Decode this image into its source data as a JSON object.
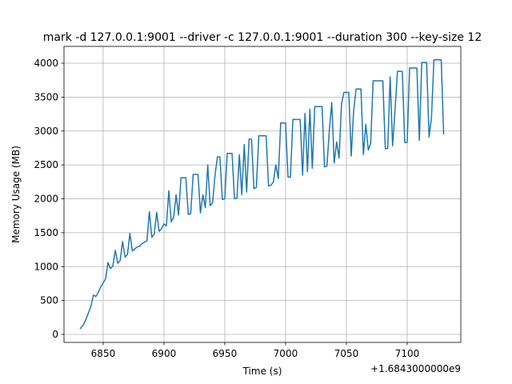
{
  "chart_data": {
    "type": "line",
    "title": "mark -d 127.0.0.1:9001 --driver -c 127.0.0.1:9001 --duration 300 --key-size 12",
    "x_label": "Time (s)",
    "y_label": "Memory Usage (MB)",
    "x_offset_label": "+1.6843000000e9",
    "x": [
      6831,
      6834,
      6836,
      6838,
      6840,
      6842,
      6844,
      6846,
      6848,
      6850,
      6852,
      6854,
      6856,
      6858,
      6860,
      6862,
      6864,
      6866,
      6868,
      6870,
      6872,
      6874,
      6876,
      6878,
      6880,
      6882,
      6884,
      6886,
      6888,
      6890,
      6892,
      6894,
      6896,
      6898,
      6900,
      6902,
      6904,
      6906,
      6908,
      6910,
      6912,
      6914,
      6918,
      6920,
      6922,
      6924,
      6928,
      6930,
      6932,
      6934,
      6936,
      6938,
      6940,
      6942,
      6944,
      6946,
      6948,
      6950,
      6952,
      6956,
      6958,
      6960,
      6962,
      6964,
      6966,
      6968,
      6970,
      6972,
      6974,
      6976,
      6978,
      6984,
      6986,
      6988,
      6990,
      6992,
      6994,
      6996,
      7000,
      7002,
      7004,
      7006,
      7012,
      7014,
      7016,
      7018,
      7020,
      7022,
      7024,
      7030,
      7032,
      7034,
      7036,
      7038,
      7040,
      7042,
      7044,
      7046,
      7048,
      7052,
      7054,
      7056,
      7058,
      7062,
      7064,
      7066,
      7068,
      7070,
      7072,
      7080,
      7082,
      7084,
      7086,
      7088,
      7090,
      7092,
      7096,
      7098,
      7100,
      7102,
      7108,
      7110,
      7112,
      7116,
      7118,
      7120,
      7122,
      7128,
      7130
    ],
    "series": [
      {
        "name": "Memory Usage",
        "color": "#1f77b4",
        "values": [
          80,
          150,
          230,
          320,
          420,
          580,
          560,
          620,
          700,
          760,
          820,
          1060,
          970,
          1010,
          1240,
          1050,
          1090,
          1370,
          1140,
          1180,
          1490,
          1230,
          1260,
          1290,
          1300,
          1340,
          1360,
          1380,
          1810,
          1430,
          1480,
          1800,
          1520,
          1560,
          1630,
          1600,
          2120,
          1660,
          1730,
          2060,
          1760,
          2310,
          2310,
          1770,
          1780,
          2360,
          2360,
          1790,
          2060,
          1870,
          2500,
          1900,
          1940,
          2350,
          2620,
          2620,
          1990,
          2000,
          2670,
          2670,
          2000,
          2010,
          2650,
          2060,
          2800,
          2100,
          2880,
          2880,
          2150,
          2170,
          2930,
          2930,
          2190,
          2200,
          2250,
          2500,
          2300,
          3120,
          3120,
          2320,
          2320,
          3170,
          3170,
          2350,
          3260,
          2400,
          3320,
          2450,
          3360,
          3360,
          2470,
          2480,
          3010,
          3420,
          2530,
          2840,
          2600,
          3400,
          3570,
          3570,
          2630,
          3300,
          3620,
          3620,
          2650,
          3100,
          2720,
          2820,
          3740,
          3740,
          2740,
          2740,
          3800,
          2780,
          3300,
          3880,
          3880,
          2830,
          2830,
          3930,
          3930,
          2860,
          4010,
          4010,
          2910,
          3200,
          4050,
          4050,
          2950
        ]
      }
    ],
    "xlim": [
      6817.8,
      7144.1
    ],
    "xticks": [
      6850,
      6900,
      6950,
      7000,
      7050,
      7100
    ],
    "ylim": [
      -118,
      4248
    ],
    "yticks": [
      0,
      500,
      1000,
      1500,
      2000,
      2500,
      3000,
      3500,
      4000
    ],
    "grid": true
  }
}
